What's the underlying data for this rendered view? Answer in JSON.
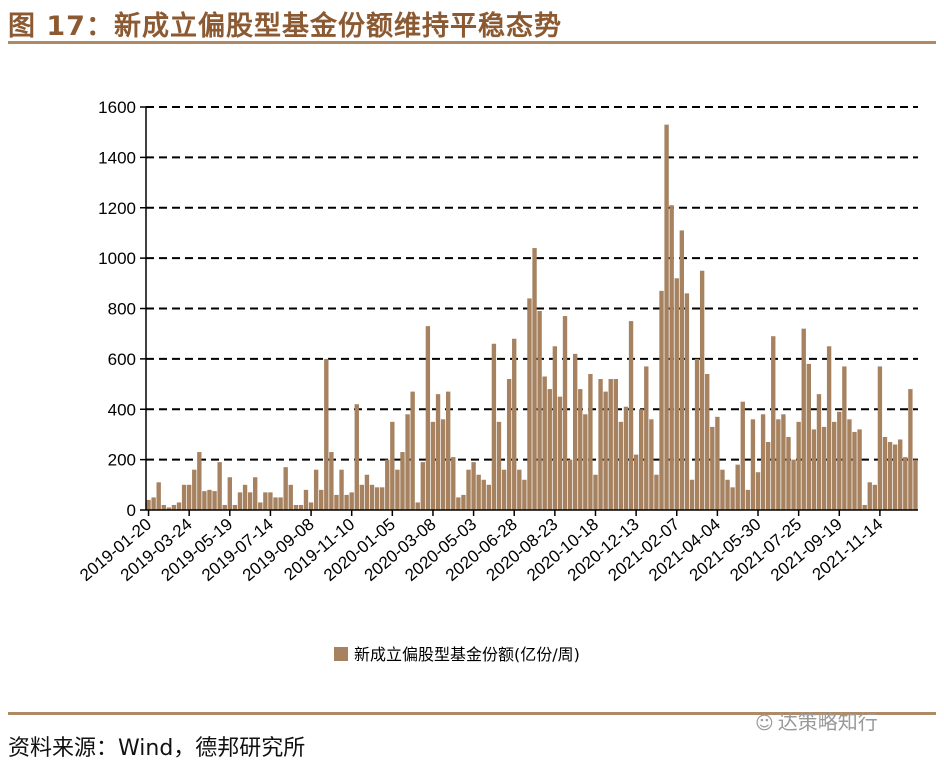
{
  "title": "图 17：新成立偏股型基金份额维持平稳态势",
  "source": "资料来源：Wind，德邦研究所",
  "watermark": "达策略知行",
  "watermark_icon": "wechat-icon",
  "colors": {
    "bar": "#a68260",
    "title": "#8c5a32",
    "rule": "#b08a64"
  },
  "chart_data": {
    "type": "bar",
    "title": "",
    "xlabel": "",
    "ylabel": "",
    "ylim": [
      0,
      1600
    ],
    "yticks": [
      0,
      200,
      400,
      600,
      800,
      1000,
      1200,
      1400,
      1600
    ],
    "grid": "horizontal-dashed",
    "legend": "bottom-center",
    "x_tick_labels": [
      "2019-01-20",
      "2019-03-24",
      "2019-05-19",
      "2019-07-14",
      "2019-09-08",
      "2019-11-10",
      "2020-01-05",
      "2020-03-08",
      "2020-05-03",
      "2020-06-28",
      "2020-08-23",
      "2020-10-18",
      "2020-12-13",
      "2021-02-07",
      "2021-04-04",
      "2021-05-30",
      "2021-07-25",
      "2021-09-19",
      "2021-11-14"
    ],
    "x_tick_every": 8,
    "series": [
      {
        "name": "新成立偏股型基金份额(亿份/周)",
        "values": [
          40,
          50,
          110,
          20,
          10,
          20,
          30,
          100,
          100,
          160,
          230,
          75,
          80,
          75,
          190,
          20,
          130,
          20,
          70,
          100,
          70,
          130,
          30,
          70,
          70,
          50,
          50,
          170,
          100,
          20,
          20,
          80,
          30,
          160,
          80,
          600,
          230,
          60,
          160,
          60,
          70,
          420,
          100,
          140,
          100,
          90,
          90,
          200,
          350,
          160,
          230,
          380,
          470,
          30,
          190,
          730,
          350,
          460,
          360,
          470,
          210,
          50,
          60,
          160,
          190,
          140,
          120,
          100,
          660,
          350,
          160,
          520,
          680,
          160,
          120,
          840,
          1040,
          790,
          530,
          480,
          650,
          450,
          770,
          200,
          620,
          480,
          380,
          540,
          140,
          520,
          470,
          520,
          520,
          350,
          410,
          750,
          220,
          400,
          570,
          360,
          140,
          870,
          1530,
          1210,
          920,
          1110,
          860,
          120,
          600,
          950,
          540,
          330,
          370,
          160,
          120,
          90,
          180,
          430,
          80,
          360,
          150,
          380,
          270,
          690,
          360,
          380,
          290,
          200,
          350,
          720,
          580,
          320,
          460,
          330,
          650,
          350,
          390,
          570,
          360,
          310,
          320,
          20,
          110,
          100,
          570,
          290,
          270,
          260,
          280,
          210,
          480,
          200
        ]
      }
    ]
  }
}
